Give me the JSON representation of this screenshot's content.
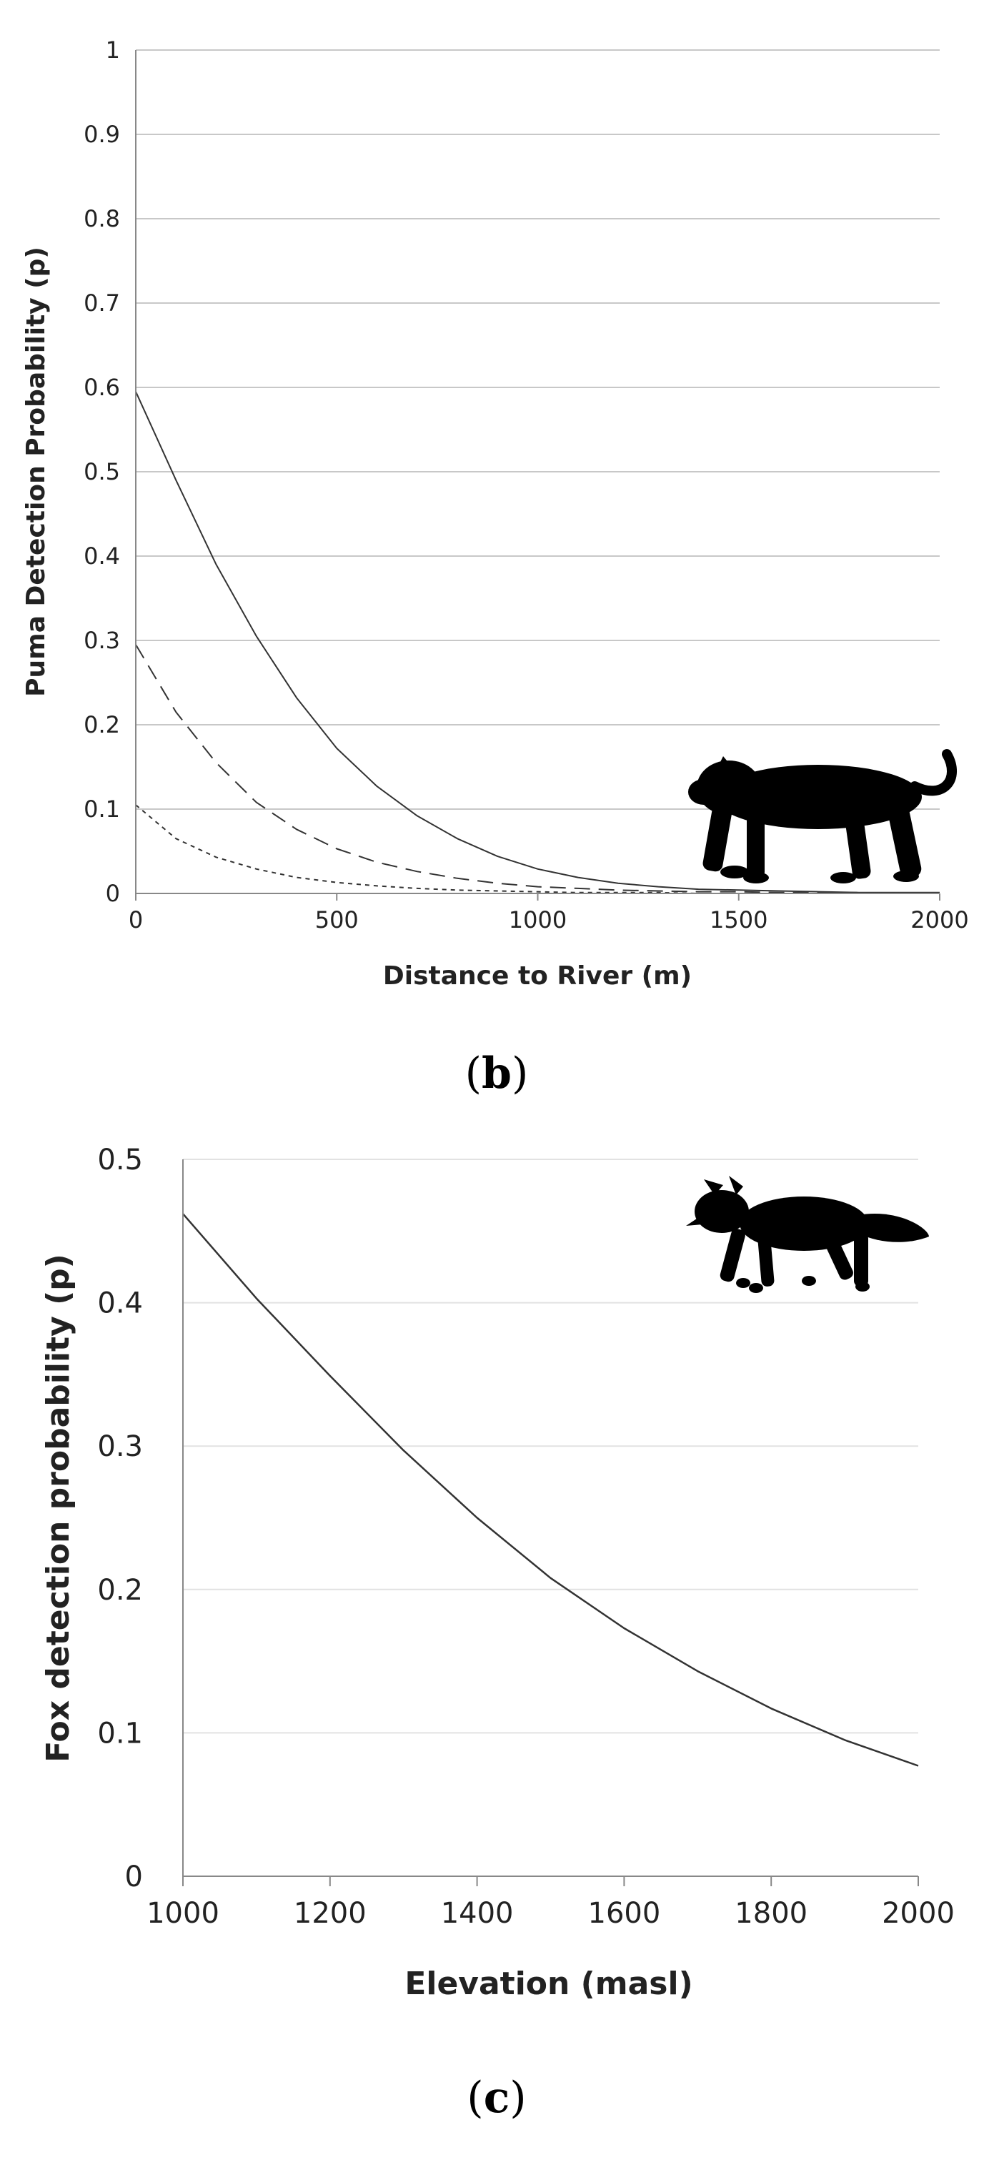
{
  "chart_data": [
    {
      "type": "line",
      "panel_label": "b",
      "xlabel": "Distance to River (m)",
      "ylabel": "Puma Detection Probability (p)",
      "xlim": [
        0,
        2000
      ],
      "ylim": [
        0,
        1
      ],
      "x_ticks": [
        "0",
        "500",
        "1000",
        "1500",
        "2000"
      ],
      "y_ticks": [
        "0",
        "0.1",
        "0.2",
        "0.3",
        "0.4",
        "0.5",
        "0.6",
        "0.7",
        "0.8",
        "0.9",
        "1"
      ],
      "grid": true,
      "legend": "none",
      "silhouette": "puma-silhouette-icon",
      "series": [
        {
          "style": "solid",
          "x": [
            0,
            100,
            200,
            300,
            400,
            500,
            600,
            700,
            800,
            900,
            1000,
            1100,
            1200,
            1300,
            1400,
            1500,
            1600,
            1700,
            1800,
            1900,
            2000
          ],
          "values": [
            0.595,
            0.49,
            0.39,
            0.305,
            0.232,
            0.172,
            0.127,
            0.092,
            0.065,
            0.044,
            0.029,
            0.019,
            0.012,
            0.008,
            0.005,
            0.004,
            0.003,
            0.002,
            0.001,
            0.001,
            0.001
          ]
        },
        {
          "style": "dashed",
          "x": [
            0,
            100,
            200,
            300,
            400,
            500,
            600,
            700,
            800,
            900,
            1000,
            1100,
            1200,
            1300,
            1400,
            1500,
            1600,
            1700,
            1800,
            1900,
            2000
          ],
          "values": [
            0.295,
            0.215,
            0.155,
            0.108,
            0.076,
            0.053,
            0.037,
            0.026,
            0.018,
            0.012,
            0.008,
            0.006,
            0.004,
            0.003,
            0.002,
            0.002,
            0.001,
            0.001,
            0.001,
            0.0,
            0.0
          ]
        },
        {
          "style": "dotted",
          "x": [
            0,
            100,
            200,
            300,
            400,
            500,
            600,
            700,
            800,
            900,
            1000,
            1100,
            1200,
            1300,
            1400,
            1500,
            1600,
            1700,
            1800,
            1900,
            2000
          ],
          "values": [
            0.105,
            0.065,
            0.043,
            0.029,
            0.019,
            0.013,
            0.009,
            0.006,
            0.004,
            0.003,
            0.002,
            0.001,
            0.001,
            0.001,
            0.0,
            0.0,
            0.0,
            0.0,
            0.0,
            0.0,
            0.0
          ]
        }
      ]
    },
    {
      "type": "line",
      "panel_label": "c",
      "xlabel": "Elevation (masl)",
      "ylabel": "Fox detection probability (p)",
      "xlim": [
        1000,
        2000
      ],
      "ylim": [
        0,
        0.5
      ],
      "x_ticks": [
        "1000",
        "1200",
        "1400",
        "1600",
        "1800",
        "2000"
      ],
      "y_ticks": [
        "0",
        "0.1",
        "0.2",
        "0.3",
        "0.4",
        "0.5"
      ],
      "grid": true,
      "legend": "none",
      "silhouette": "fox-silhouette-icon",
      "series": [
        {
          "style": "solid",
          "x": [
            1000,
            1100,
            1200,
            1300,
            1400,
            1500,
            1600,
            1700,
            1800,
            1900,
            2000
          ],
          "values": [
            0.462,
            0.403,
            0.349,
            0.297,
            0.25,
            0.208,
            0.173,
            0.143,
            0.117,
            0.095,
            0.077
          ]
        }
      ]
    }
  ]
}
